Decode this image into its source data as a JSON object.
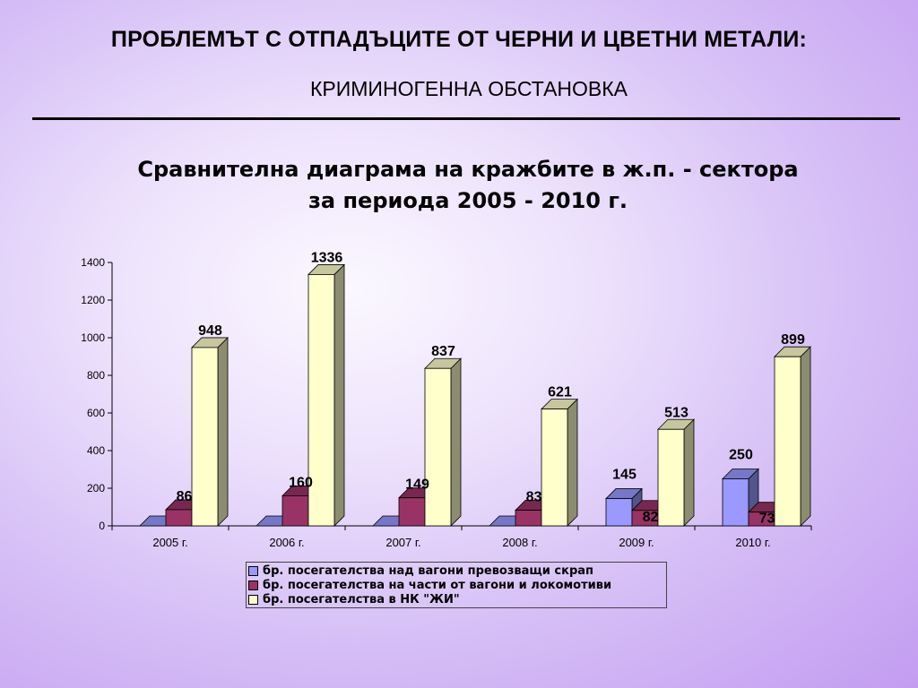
{
  "slide": {
    "title": "ПРОБЛЕМЪТ С ОТПАДЪЦИТЕ ОТ ЧЕРНИ И ЦВЕТНИ МЕТАЛИ:",
    "subtitle": "КРИМИНОГЕННА ОБСТАНОВКА"
  },
  "chart_data": {
    "type": "bar",
    "title_line1": "Сравнителна диаграма на кражбите в ж.п. - сектора",
    "title_line2": "за периода 2005 - 2010 г.",
    "categories": [
      "2005 г.",
      "2006  г.",
      "2007  г.",
      "2008  г.",
      "2009  г.",
      "2010  г."
    ],
    "ylim": [
      0,
      1400
    ],
    "yticks": [
      "0",
      "200",
      "400",
      "600",
      "800",
      "1000",
      "1200",
      "1400"
    ],
    "grid": false,
    "legend_position": "bottom",
    "series": [
      {
        "name": "бр. посегателства над вагони превозващи скрап",
        "values": [
          0,
          0,
          0,
          0,
          145,
          250
        ],
        "labels": [
          "",
          "",
          "",
          "",
          "145",
          "250"
        ],
        "color": "#9999ff"
      },
      {
        "name": "бр. посегателства на части от вагони и локомотиви",
        "values": [
          86,
          160,
          149,
          83,
          82,
          73
        ],
        "labels": [
          "86",
          "160",
          "149",
          "83",
          "82",
          "73"
        ],
        "color": "#993366"
      },
      {
        "name": "бр. посегателства в НК \"ЖИ\"",
        "values": [
          948,
          1336,
          837,
          621,
          513,
          899
        ],
        "labels": [
          "948",
          "1336",
          "837",
          "621",
          "513",
          "899"
        ],
        "color": "#ffffcc"
      }
    ]
  }
}
